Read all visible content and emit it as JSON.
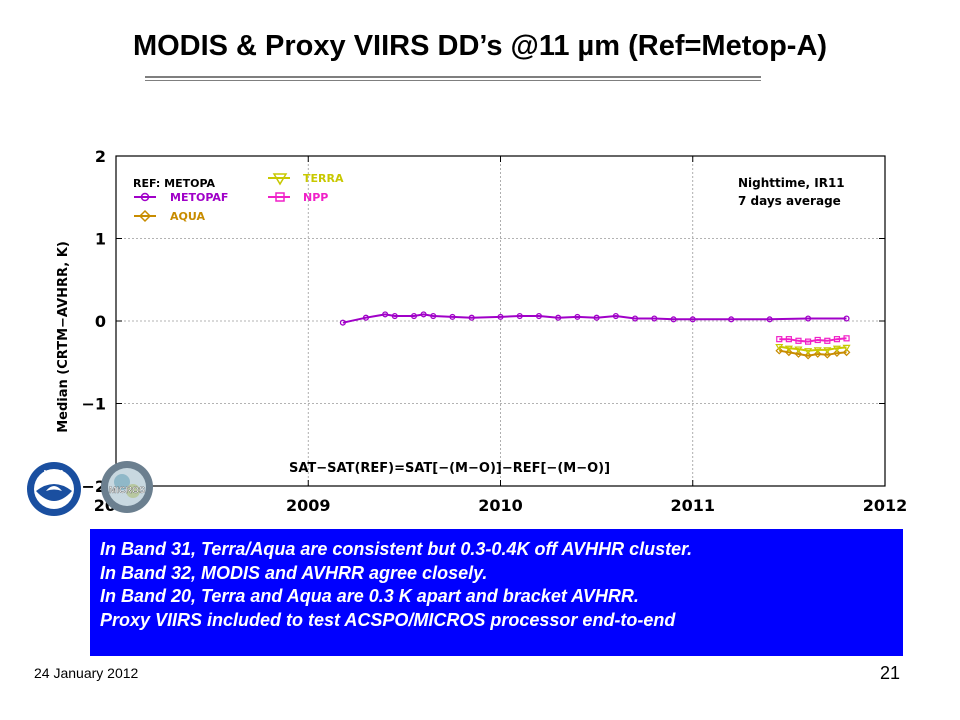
{
  "slide": {
    "title": "MODIS & Proxy VIIRS DD’s @11 µm (Ref=Metop-A)",
    "date": "24 January 2012",
    "page_number": "21"
  },
  "callout": {
    "lines": [
      "In Band 31, Terra/Aqua are consistent but 0.3-0.4K off AVHHR cluster.",
      "In Band 32, MODIS and AVHRR agree  closely.",
      "In Band 20, Terra and Aqua are 0.3 K apart and bracket AVHRR.",
      "Proxy VIIRS included to test ACSPO/MICROS processor end-to-end"
    ],
    "background": "#0000ff",
    "text_color": "#ffffff"
  },
  "logos": {
    "noaa": "NOAA",
    "micros": "MICROS"
  },
  "chart_data": {
    "type": "line",
    "ylabel": "Median (CRTM−AVHRR, K)",
    "ylim": [
      -2,
      2
    ],
    "xlim": [
      2008,
      2012
    ],
    "yticks": [
      "−2",
      "−1",
      "0",
      "1",
      "2"
    ],
    "xticks": [
      "2008",
      "2009",
      "2010",
      "2011",
      "2012"
    ],
    "grid": true,
    "legend_title": "REF: METOPA",
    "annotation": [
      "Nighttime, IR11",
      "7 days average"
    ],
    "formula": "SAT−SAT(REF)=SAT[−(M−O)]−REF[−(M−O)]",
    "series": [
      {
        "name": "METOPAF",
        "color": "#a000c8",
        "marker": "circle",
        "x": [
          2009.18,
          2009.3,
          2009.4,
          2009.45,
          2009.55,
          2009.6,
          2009.65,
          2009.75,
          2009.85,
          2010.0,
          2010.1,
          2010.2,
          2010.3,
          2010.4,
          2010.5,
          2010.6,
          2010.7,
          2010.8,
          2010.9,
          2011.0,
          2011.2,
          2011.4,
          2011.6,
          2011.8
        ],
        "y": [
          -0.02,
          0.04,
          0.08,
          0.06,
          0.06,
          0.08,
          0.06,
          0.05,
          0.04,
          0.05,
          0.06,
          0.06,
          0.04,
          0.05,
          0.04,
          0.06,
          0.03,
          0.03,
          0.02,
          0.02,
          0.02,
          0.02,
          0.03,
          0.03
        ]
      },
      {
        "name": "AQUA",
        "color": "#c88c00",
        "marker": "diamond",
        "x": [
          2011.45,
          2011.5,
          2011.55,
          2011.6,
          2011.65,
          2011.7,
          2011.75,
          2011.8
        ],
        "y": [
          -0.36,
          -0.38,
          -0.4,
          -0.42,
          -0.4,
          -0.41,
          -0.39,
          -0.38
        ]
      },
      {
        "name": "TERRA",
        "color": "#c8c800",
        "marker": "triangle",
        "x": [
          2011.45,
          2011.5,
          2011.55,
          2011.6,
          2011.65,
          2011.7,
          2011.75,
          2011.8
        ],
        "y": [
          -0.31,
          -0.33,
          -0.34,
          -0.36,
          -0.35,
          -0.35,
          -0.33,
          -0.32
        ]
      },
      {
        "name": "NPP",
        "color": "#f020c8",
        "marker": "square",
        "x": [
          2011.45,
          2011.5,
          2011.55,
          2011.6,
          2011.65,
          2011.7,
          2011.75,
          2011.8
        ],
        "y": [
          -0.22,
          -0.22,
          -0.24,
          -0.25,
          -0.23,
          -0.24,
          -0.22,
          -0.21
        ]
      }
    ]
  }
}
